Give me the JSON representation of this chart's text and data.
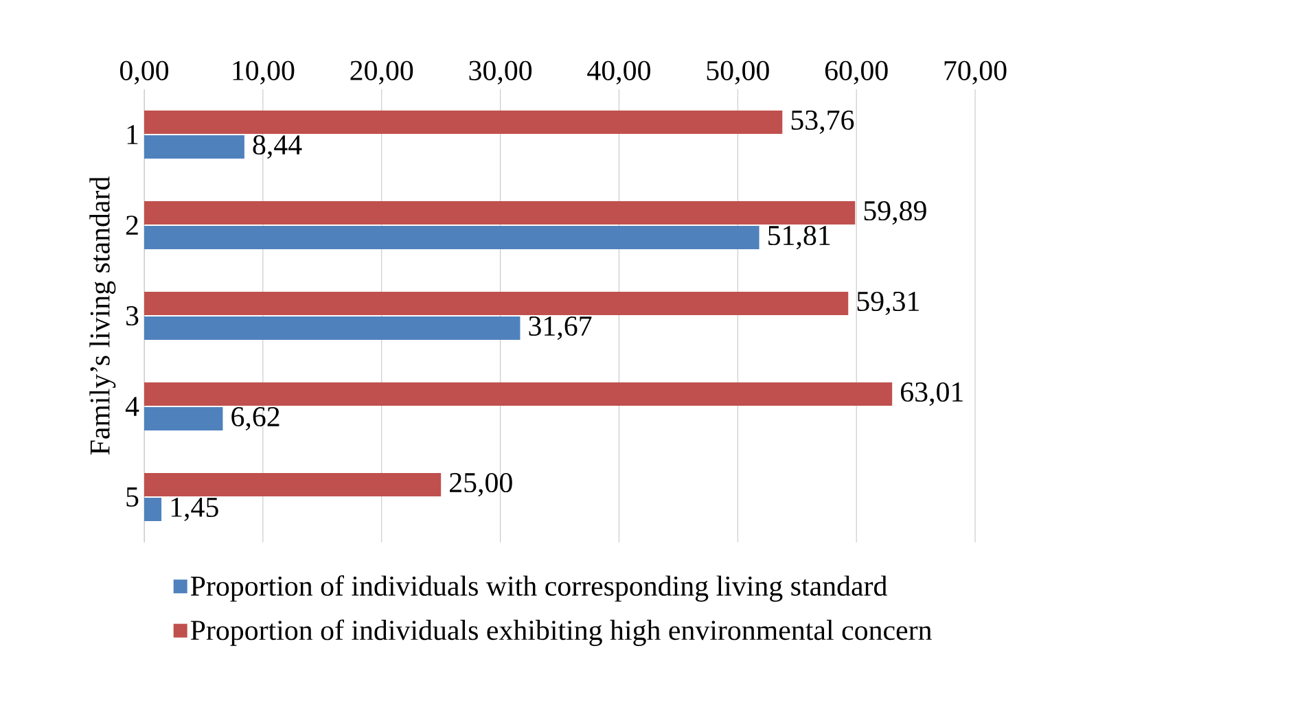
{
  "chart_data": {
    "type": "bar",
    "orientation": "horizontal",
    "ylabel": "Family’s living standard",
    "categories": [
      "1",
      "2",
      "3",
      "4",
      "5"
    ],
    "series": [
      {
        "name": "Proportion of individuals with corresponding living standard",
        "color": "#4f81bd",
        "values": [
          8.44,
          51.81,
          31.67,
          6.62,
          1.45
        ],
        "value_labels": [
          "8,44",
          "51,81",
          "31,67",
          "6,62",
          "1,45"
        ]
      },
      {
        "name": "Proportion of individuals exhibiting high environmental concern",
        "color": "#c0504d",
        "values": [
          53.76,
          59.89,
          59.31,
          63.01,
          25.0
        ],
        "value_labels": [
          "53,76",
          "59,89",
          "59,31",
          "63,01",
          "25,00"
        ]
      }
    ],
    "xlim": [
      0,
      70
    ],
    "xticks": [
      {
        "value": 0,
        "label": "0,00"
      },
      {
        "value": 10,
        "label": "10,00"
      },
      {
        "value": 20,
        "label": "20,00"
      },
      {
        "value": 30,
        "label": "30,00"
      },
      {
        "value": 40,
        "label": "40,00"
      },
      {
        "value": 50,
        "label": "50,00"
      },
      {
        "value": 60,
        "label": "60,00"
      },
      {
        "value": 70,
        "label": "70,00"
      }
    ],
    "grid": "x",
    "legend": "bottom"
  }
}
